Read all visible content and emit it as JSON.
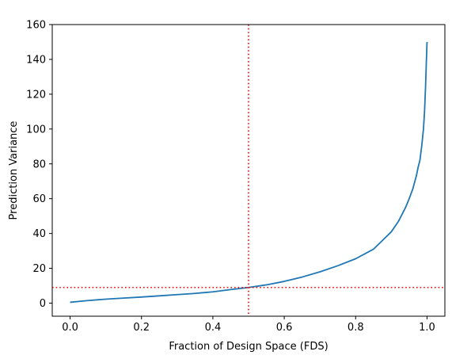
{
  "chart_data": {
    "type": "line",
    "title": "",
    "xlabel": "Fraction of Design Space (FDS)",
    "ylabel": "Prediction Variance",
    "xlim": [
      -0.05,
      1.05
    ],
    "ylim": [
      -7.5,
      160
    ],
    "xticks": [
      0.0,
      0.2,
      0.4,
      0.6,
      0.8,
      1.0
    ],
    "xtick_labels": [
      "0.0",
      "0.2",
      "0.4",
      "0.6",
      "0.8",
      "1.0"
    ],
    "yticks": [
      0,
      20,
      40,
      60,
      80,
      100,
      120,
      140,
      160
    ],
    "ytick_labels": [
      "0",
      "20",
      "40",
      "60",
      "80",
      "100",
      "120",
      "140",
      "160"
    ],
    "grid": false,
    "series": [
      {
        "color": "#1f77b4",
        "x": [
          0.0,
          0.05,
          0.1,
          0.15,
          0.2,
          0.25,
          0.3,
          0.35,
          0.4,
          0.45,
          0.5,
          0.55,
          0.6,
          0.65,
          0.7,
          0.75,
          0.8,
          0.85,
          0.88,
          0.9,
          0.92,
          0.94,
          0.95,
          0.96,
          0.97,
          0.975,
          0.98,
          0.985,
          0.99,
          0.993,
          0.996,
          0.998,
          1.0
        ],
        "y": [
          0.5,
          1.5,
          2.3,
          2.9,
          3.5,
          4.2,
          4.9,
          5.6,
          6.5,
          7.8,
          9.0,
          10.5,
          12.5,
          15.0,
          18.0,
          21.5,
          25.5,
          31.0,
          37.0,
          41.0,
          47.0,
          55.0,
          60.0,
          65.5,
          73.0,
          78.0,
          82.0,
          90.0,
          100.0,
          110.0,
          125.0,
          138.0,
          150.0
        ]
      }
    ],
    "reference_lines": [
      {
        "orientation": "vertical",
        "value": 0.5,
        "color": "#ff0000",
        "style": "dotted"
      },
      {
        "orientation": "horizontal",
        "value": 9.0,
        "color": "#ff0000",
        "style": "dotted"
      }
    ]
  }
}
